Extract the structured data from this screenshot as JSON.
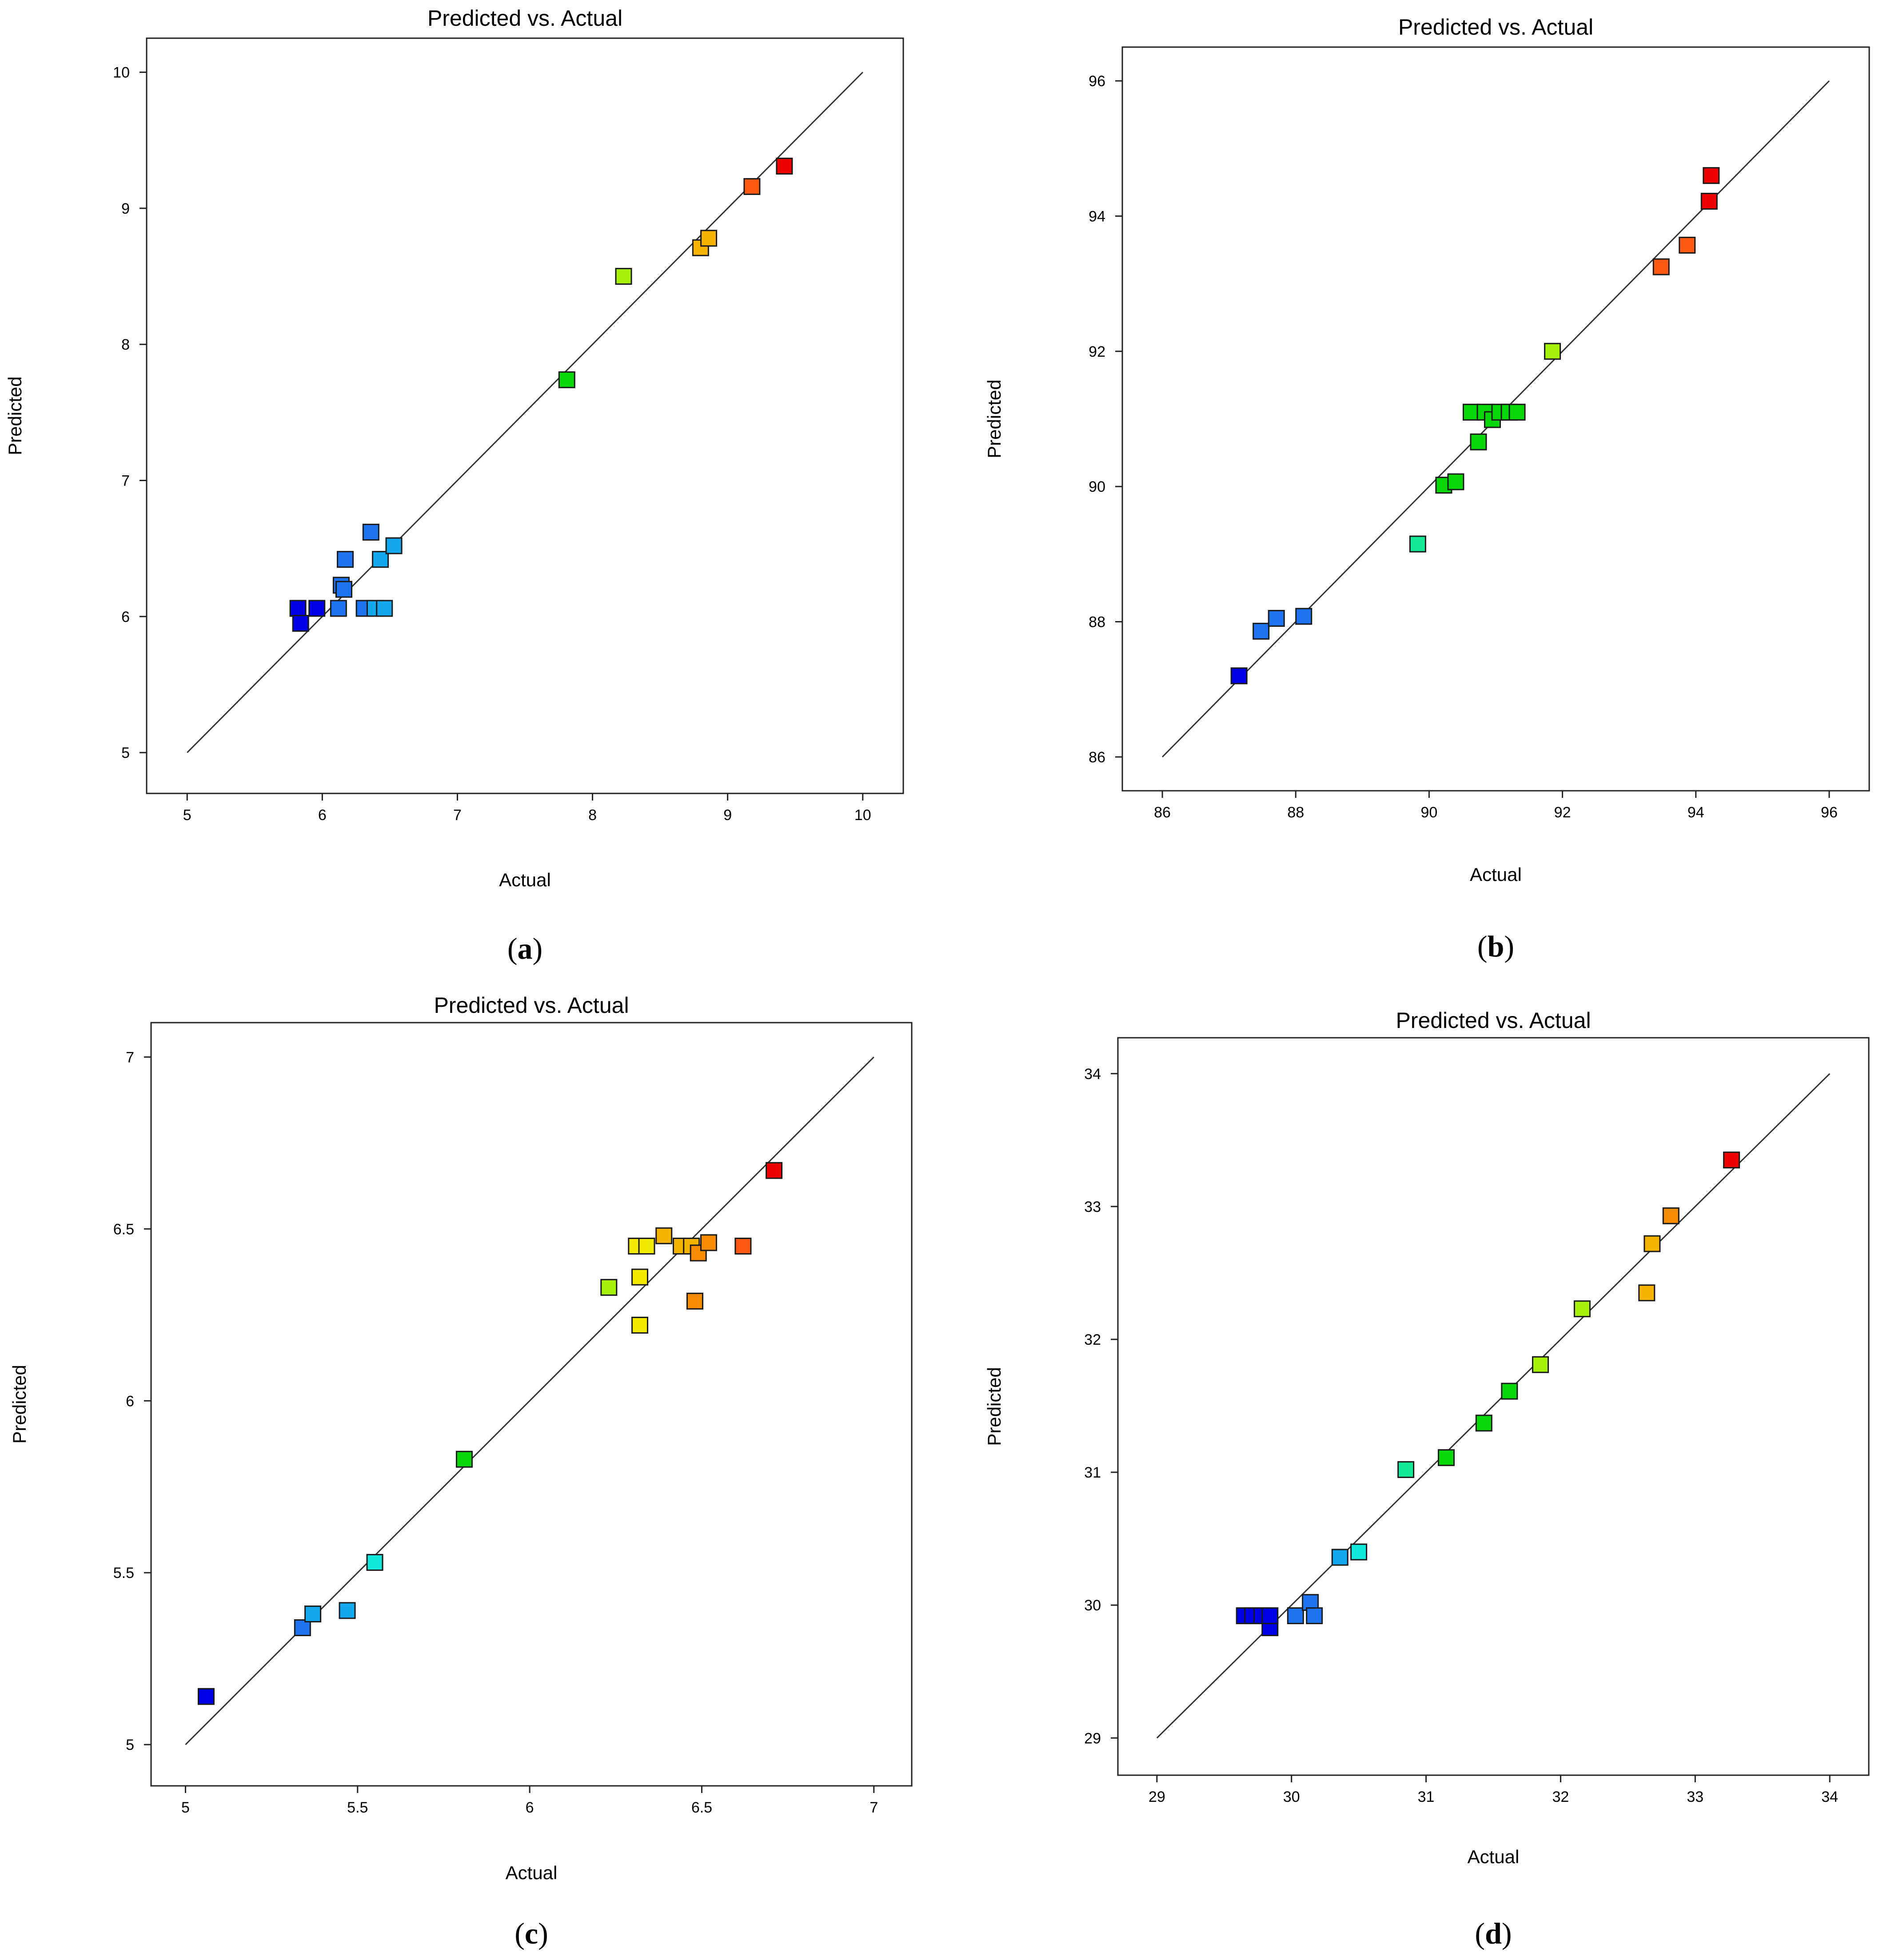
{
  "colors": {
    "scale": [
      "#0000e6",
      "#1e74f0",
      "#14a9ee",
      "#12e8dc",
      "#14e896",
      "#0ad70a",
      "#a6f20a",
      "#f2ea00",
      "#f6b400",
      "#f58c00",
      "#ff5a14",
      "#ee0000"
    ],
    "frame": "#222222",
    "line": "#333333"
  },
  "chart_data": [
    {
      "id": "a",
      "panel_label": "a",
      "type": "scatter",
      "title": "Predicted vs. Actual",
      "xlabel": "Actual",
      "ylabel": "Predicted",
      "xlim": [
        4.7,
        10.3
      ],
      "ylim": [
        4.7,
        10.25
      ],
      "xticks": [
        "5",
        "6",
        "7",
        "8",
        "9",
        "10"
      ],
      "yticks": [
        "5",
        "6",
        "7",
        "8",
        "9",
        "10"
      ],
      "reference_line": [
        [
          5,
          5
        ],
        [
          10,
          10
        ]
      ],
      "points": [
        {
          "x": 5.82,
          "y": 6.06,
          "c": 0
        },
        {
          "x": 5.84,
          "y": 5.95,
          "c": 0
        },
        {
          "x": 5.96,
          "y": 6.06,
          "c": 0
        },
        {
          "x": 6.12,
          "y": 6.06,
          "c": 1
        },
        {
          "x": 6.14,
          "y": 6.23,
          "c": 1
        },
        {
          "x": 6.16,
          "y": 6.2,
          "c": 1
        },
        {
          "x": 6.17,
          "y": 6.42,
          "c": 1
        },
        {
          "x": 6.31,
          "y": 6.06,
          "c": 1
        },
        {
          "x": 6.36,
          "y": 6.62,
          "c": 1
        },
        {
          "x": 6.39,
          "y": 6.06,
          "c": 2
        },
        {
          "x": 6.43,
          "y": 6.42,
          "c": 2
        },
        {
          "x": 6.46,
          "y": 6.06,
          "c": 2
        },
        {
          "x": 6.53,
          "y": 6.52,
          "c": 2
        },
        {
          "x": 7.81,
          "y": 7.74,
          "c": 5
        },
        {
          "x": 8.23,
          "y": 8.5,
          "c": 6
        },
        {
          "x": 8.8,
          "y": 8.71,
          "c": 8
        },
        {
          "x": 8.86,
          "y": 8.78,
          "c": 8
        },
        {
          "x": 9.18,
          "y": 9.16,
          "c": 10
        },
        {
          "x": 9.42,
          "y": 9.31,
          "c": 11
        }
      ]
    },
    {
      "id": "b",
      "panel_label": "b",
      "type": "scatter",
      "title": "Predicted vs. Actual",
      "xlabel": "Actual",
      "ylabel": "Predicted",
      "xlim": [
        85.4,
        96.6
      ],
      "ylim": [
        85.5,
        96.5
      ],
      "xticks": [
        "86",
        "88",
        "90",
        "92",
        "94",
        "96"
      ],
      "yticks": [
        "86",
        "88",
        "90",
        "92",
        "94",
        "96"
      ],
      "reference_line": [
        [
          86,
          86
        ],
        [
          96,
          96
        ]
      ],
      "points": [
        {
          "x": 87.15,
          "y": 87.2,
          "c": 0
        },
        {
          "x": 87.48,
          "y": 87.86,
          "c": 1
        },
        {
          "x": 87.71,
          "y": 88.05,
          "c": 1
        },
        {
          "x": 88.12,
          "y": 88.08,
          "c": 1
        },
        {
          "x": 89.83,
          "y": 89.15,
          "c": 4
        },
        {
          "x": 90.22,
          "y": 90.02,
          "c": 5
        },
        {
          "x": 90.4,
          "y": 90.07,
          "c": 5
        },
        {
          "x": 90.63,
          "y": 91.1,
          "c": 5
        },
        {
          "x": 90.74,
          "y": 90.66,
          "c": 5
        },
        {
          "x": 90.84,
          "y": 91.1,
          "c": 5
        },
        {
          "x": 90.95,
          "y": 90.99,
          "c": 5
        },
        {
          "x": 91.06,
          "y": 91.1,
          "c": 5
        },
        {
          "x": 91.2,
          "y": 91.1,
          "c": 5
        },
        {
          "x": 91.32,
          "y": 91.1,
          "c": 5
        },
        {
          "x": 91.85,
          "y": 92.0,
          "c": 6
        },
        {
          "x": 93.48,
          "y": 93.25,
          "c": 10
        },
        {
          "x": 93.87,
          "y": 93.57,
          "c": 10
        },
        {
          "x": 94.2,
          "y": 94.22,
          "c": 11
        },
        {
          "x": 94.23,
          "y": 94.6,
          "c": 11
        }
      ]
    },
    {
      "id": "c",
      "panel_label": "c",
      "type": "scatter",
      "title": "Predicted vs. Actual",
      "xlabel": "Actual",
      "ylabel": "Predicted",
      "xlim": [
        4.9,
        7.11
      ],
      "ylim": [
        4.88,
        7.1
      ],
      "xticks": [
        "5",
        "5.5",
        "6",
        "6.5",
        "7"
      ],
      "yticks": [
        "5",
        "5.5",
        "6",
        "6.5",
        "7"
      ],
      "reference_line": [
        [
          5,
          5
        ],
        [
          7,
          7
        ]
      ],
      "points": [
        {
          "x": 5.06,
          "y": 5.14,
          "c": 0
        },
        {
          "x": 5.34,
          "y": 5.34,
          "c": 1
        },
        {
          "x": 5.37,
          "y": 5.38,
          "c": 2
        },
        {
          "x": 5.47,
          "y": 5.39,
          "c": 2
        },
        {
          "x": 5.55,
          "y": 5.53,
          "c": 3
        },
        {
          "x": 5.81,
          "y": 5.83,
          "c": 5
        },
        {
          "x": 6.23,
          "y": 6.33,
          "c": 6
        },
        {
          "x": 6.31,
          "y": 6.45,
          "c": 7
        },
        {
          "x": 6.32,
          "y": 6.22,
          "c": 7
        },
        {
          "x": 6.32,
          "y": 6.36,
          "c": 7
        },
        {
          "x": 6.34,
          "y": 6.45,
          "c": 7
        },
        {
          "x": 6.39,
          "y": 6.48,
          "c": 8
        },
        {
          "x": 6.44,
          "y": 6.45,
          "c": 8
        },
        {
          "x": 6.47,
          "y": 6.45,
          "c": 8
        },
        {
          "x": 6.48,
          "y": 6.29,
          "c": 9
        },
        {
          "x": 6.49,
          "y": 6.43,
          "c": 9
        },
        {
          "x": 6.52,
          "y": 6.46,
          "c": 9
        },
        {
          "x": 6.62,
          "y": 6.45,
          "c": 10
        },
        {
          "x": 6.71,
          "y": 6.67,
          "c": 11
        }
      ]
    },
    {
      "id": "d",
      "panel_label": "d",
      "type": "scatter",
      "title": "Predicted vs. Actual",
      "xlabel": "Actual",
      "ylabel": "Predicted",
      "xlim": [
        28.71,
        34.29
      ],
      "ylim": [
        28.72,
        34.27
      ],
      "xticks": [
        "29",
        "30",
        "31",
        "32",
        "33",
        "34"
      ],
      "yticks": [
        "29",
        "30",
        "31",
        "32",
        "33",
        "34"
      ],
      "reference_line": [
        [
          29,
          29
        ],
        [
          34,
          34
        ]
      ],
      "points": [
        {
          "x": 29.65,
          "y": 29.92,
          "c": 0
        },
        {
          "x": 29.71,
          "y": 29.92,
          "c": 0
        },
        {
          "x": 29.78,
          "y": 29.92,
          "c": 0
        },
        {
          "x": 29.84,
          "y": 29.83,
          "c": 0
        },
        {
          "x": 29.84,
          "y": 29.92,
          "c": 0
        },
        {
          "x": 30.03,
          "y": 29.92,
          "c": 1
        },
        {
          "x": 30.14,
          "y": 30.02,
          "c": 1
        },
        {
          "x": 30.17,
          "y": 29.92,
          "c": 1
        },
        {
          "x": 30.36,
          "y": 30.36,
          "c": 2
        },
        {
          "x": 30.5,
          "y": 30.4,
          "c": 3
        },
        {
          "x": 30.85,
          "y": 31.02,
          "c": 4
        },
        {
          "x": 31.15,
          "y": 31.11,
          "c": 5
        },
        {
          "x": 31.43,
          "y": 31.37,
          "c": 5
        },
        {
          "x": 31.62,
          "y": 31.61,
          "c": 5
        },
        {
          "x": 31.85,
          "y": 31.81,
          "c": 6
        },
        {
          "x": 32.16,
          "y": 32.23,
          "c": 6
        },
        {
          "x": 32.64,
          "y": 32.35,
          "c": 8
        },
        {
          "x": 32.68,
          "y": 32.72,
          "c": 8
        },
        {
          "x": 32.82,
          "y": 32.93,
          "c": 9
        },
        {
          "x": 33.27,
          "y": 33.35,
          "c": 11
        }
      ]
    }
  ]
}
